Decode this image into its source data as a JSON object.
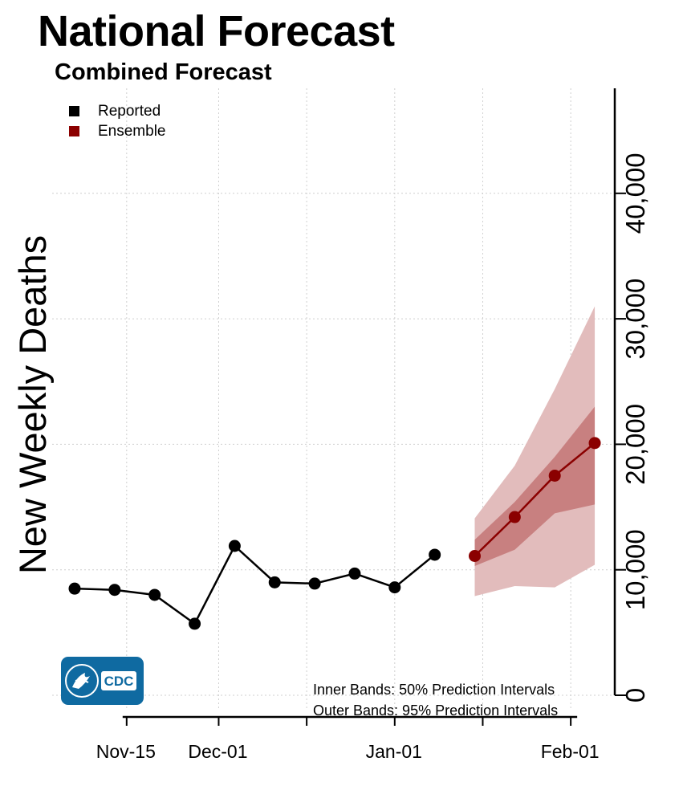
{
  "page": {
    "title": "National Forecast",
    "subtitle": "Combined Forecast"
  },
  "legend": [
    {
      "label": "Reported",
      "color": "#000000"
    },
    {
      "label": "Ensemble",
      "color": "#8b0000"
    }
  ],
  "notes": {
    "inner": "Inner Bands: 50% Prediction Intervals",
    "outer": "Outer Bands: 95% Prediction Intervals"
  },
  "logo": {
    "text": "CDC",
    "icon": "hhs-eagle-icon"
  },
  "colors": {
    "reported": "#000000",
    "ensemble": "#8b0000",
    "band_outer": "#e2bcbc",
    "band_inner": "#c88080",
    "grid": "#cfcfcf"
  },
  "chart_data": {
    "type": "line",
    "title": "National Forecast",
    "subtitle": "Combined Forecast",
    "xlabel": "",
    "ylabel": "New Weekly Deaths",
    "ylim": [
      0,
      48000
    ],
    "yticks": [
      0,
      10000,
      20000,
      30000,
      40000
    ],
    "ytick_labels": [
      "0",
      "10,000",
      "20,000",
      "30,000",
      "40,000"
    ],
    "xlim": [
      0,
      14.3
    ],
    "xtick_labels": [
      {
        "label": "Nov-15",
        "x": 1.3
      },
      {
        "label": "Dec-01",
        "x": 3.6
      },
      {
        "label": "Jan-01",
        "x": 8.0
      },
      {
        "label": "Feb-01",
        "x": 12.4
      }
    ],
    "xticks_minor": [
      1.3,
      3.6,
      5.8,
      8.0,
      10.2,
      12.4
    ],
    "y_axis_side": "right",
    "grid": true,
    "legend_position": "top-left",
    "series": [
      {
        "name": "Reported",
        "color": "#000000",
        "x": [
          0,
          1,
          2,
          3,
          4,
          5,
          6,
          7,
          8,
          9
        ],
        "values": [
          8500,
          8400,
          8000,
          5700,
          11900,
          9000,
          8900,
          9700,
          8600,
          11200
        ]
      },
      {
        "name": "Ensemble",
        "color": "#8b0000",
        "x": [
          10,
          11,
          12,
          13
        ],
        "values": [
          11100,
          14200,
          17500,
          20100
        ],
        "pi50_lower": [
          10300,
          11600,
          14500,
          15200
        ],
        "pi50_upper": [
          12400,
          15400,
          19000,
          23000
        ],
        "pi95_lower": [
          7900,
          8700,
          8600,
          10400
        ],
        "pi95_upper": [
          14100,
          18300,
          24400,
          31000
        ]
      }
    ]
  }
}
